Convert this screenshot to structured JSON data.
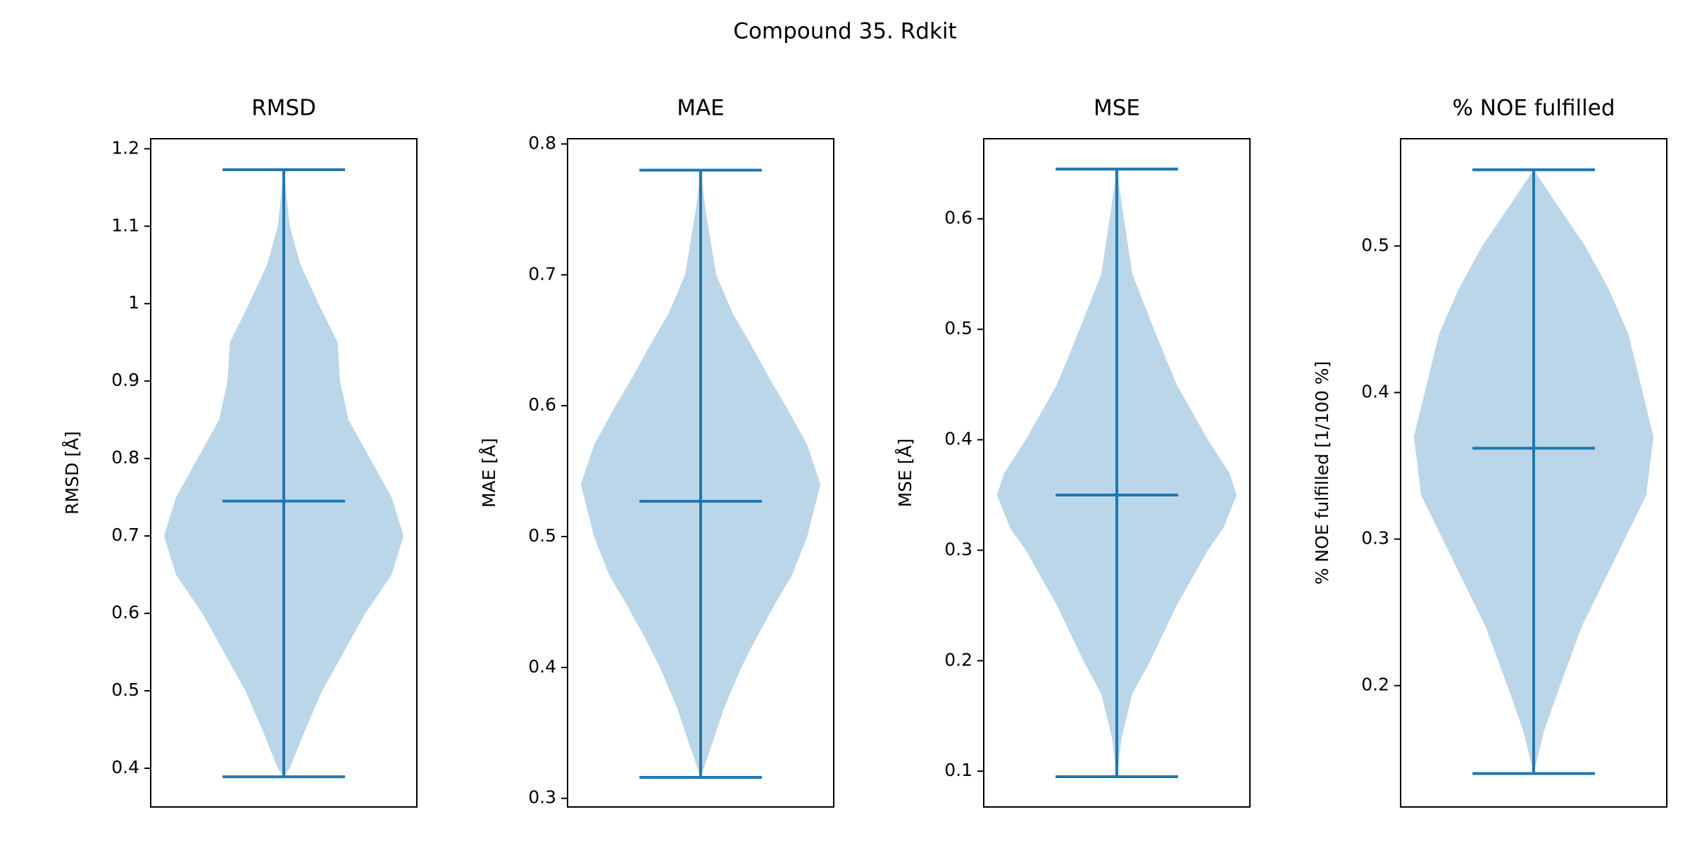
{
  "title": "Compound 35. Rdkit",
  "chart_data": [
    {
      "type": "violin",
      "title": "RMSD",
      "ylabel": "RMSD [Å]",
      "color": "#1f77b4",
      "body_alpha": 0.3,
      "ylim": [
        0.35,
        1.213
      ],
      "yticks": [
        0.4,
        0.5,
        0.6,
        0.7,
        0.8,
        0.9,
        1.0,
        1.1,
        1.2
      ],
      "min": 0.389,
      "max": 1.173,
      "mean": 0.745,
      "kde": {
        "y": [
          0.389,
          0.4,
          0.45,
          0.5,
          0.55,
          0.6,
          0.65,
          0.7,
          0.75,
          0.8,
          0.85,
          0.9,
          0.95,
          1.0,
          1.05,
          1.1,
          1.173
        ],
        "density": [
          0,
          0.05,
          0.18,
          0.32,
          0.5,
          0.68,
          0.9,
          1,
          0.9,
          0.72,
          0.54,
          0.47,
          0.45,
          0.29,
          0.14,
          0.05,
          0
        ]
      }
    },
    {
      "type": "violin",
      "title": "MAE",
      "ylabel": "MAE [Å]",
      "color": "#1f77b4",
      "body_alpha": 0.3,
      "ylim": [
        0.2934,
        0.804
      ],
      "yticks": [
        0.3,
        0.4,
        0.5,
        0.6,
        0.7,
        0.8
      ],
      "min": 0.316,
      "max": 0.78,
      "mean": 0.527,
      "kde": {
        "y": [
          0.316,
          0.34,
          0.37,
          0.4,
          0.42,
          0.45,
          0.47,
          0.5,
          0.54,
          0.57,
          0.6,
          0.62,
          0.65,
          0.67,
          0.7,
          0.75,
          0.78
        ],
        "density": [
          0,
          0.09,
          0.2,
          0.34,
          0.45,
          0.63,
          0.76,
          0.89,
          1,
          0.89,
          0.71,
          0.58,
          0.4,
          0.27,
          0.13,
          0.04,
          0
        ]
      }
    },
    {
      "type": "violin",
      "title": "MSE",
      "ylabel": "MSE [Å]",
      "color": "#1f77b4",
      "body_alpha": 0.3,
      "ylim": [
        0.0676,
        0.6725
      ],
      "yticks": [
        0.1,
        0.2,
        0.3,
        0.4,
        0.5,
        0.6
      ],
      "min": 0.095,
      "max": 0.645,
      "mean": 0.35,
      "kde": {
        "y": [
          0.095,
          0.13,
          0.17,
          0.2,
          0.25,
          0.3,
          0.32,
          0.35,
          0.37,
          0.4,
          0.45,
          0.5,
          0.55,
          0.6,
          0.645
        ],
        "density": [
          0,
          0.04,
          0.13,
          0.28,
          0.5,
          0.76,
          0.89,
          1,
          0.94,
          0.76,
          0.5,
          0.31,
          0.13,
          0.06,
          0
        ]
      }
    },
    {
      "type": "violin",
      "title": "% NOE fulfilled",
      "ylabel": "% NOE fulfilled [1/100 %]",
      "color": "#1f77b4",
      "body_alpha": 0.3,
      "ylim": [
        0.1172,
        0.5732
      ],
      "yticks": [
        0.2,
        0.3,
        0.4,
        0.5
      ],
      "min": 0.14,
      "max": 0.552,
      "mean": 0.362,
      "kde": {
        "y": [
          0.14,
          0.17,
          0.2,
          0.24,
          0.27,
          0.3,
          0.33,
          0.37,
          0.4,
          0.44,
          0.47,
          0.5,
          0.53,
          0.552
        ],
        "density": [
          0,
          0.09,
          0.22,
          0.4,
          0.58,
          0.76,
          0.94,
          1,
          0.91,
          0.79,
          0.63,
          0.43,
          0.18,
          0
        ]
      }
    }
  ]
}
